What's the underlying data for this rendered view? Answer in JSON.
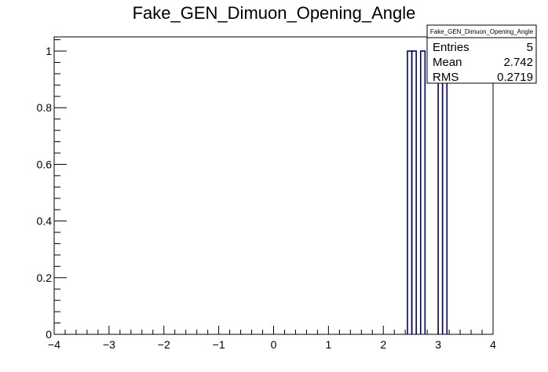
{
  "chart_data": {
    "type": "bar",
    "title": "Fake_GEN_Dimuon_Opening_Angle",
    "xlim": [
      -4,
      4
    ],
    "ylim": [
      0,
      1.05
    ],
    "x_ticks": [
      -4,
      -3,
      -2,
      -1,
      0,
      1,
      2,
      3,
      4
    ],
    "x_tick_labels": [
      "−4",
      "−3",
      "−2",
      "−1",
      "0",
      "1",
      "2",
      "3",
      "4"
    ],
    "y_ticks": [
      0,
      0.2,
      0.4,
      0.6,
      0.8,
      1
    ],
    "y_tick_labels": [
      "0",
      "0.2",
      "0.4",
      "0.6",
      "0.8",
      "1"
    ],
    "bin_width": 0.08,
    "x": [
      2.44,
      2.52,
      2.68,
      3.0,
      3.08
    ],
    "values": [
      1,
      1,
      1,
      1,
      1
    ],
    "line_color": "#000080",
    "grid": false,
    "legend": "none",
    "stats_box": {
      "position": "top-right",
      "title": "Fake_GEN_Dimuon_Opening_Angle",
      "rows": [
        {
          "label": "Entries",
          "value": "5"
        },
        {
          "label": "Mean",
          "value": "2.742"
        },
        {
          "label": "RMS",
          "value": "0.2719"
        }
      ]
    }
  }
}
